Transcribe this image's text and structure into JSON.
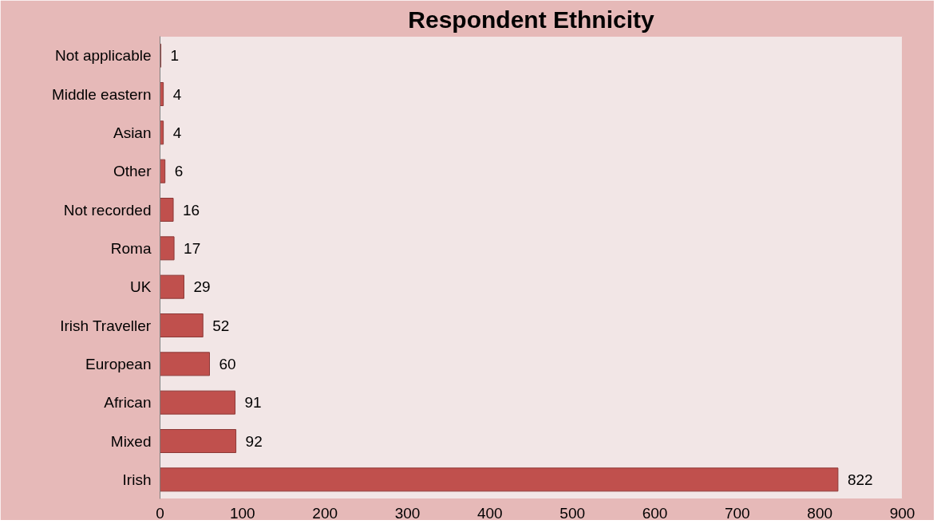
{
  "chart_data": {
    "type": "bar",
    "orientation": "horizontal",
    "title": "Respondent Ethnicity",
    "categories": [
      "Not applicable",
      "Middle eastern",
      "Asian",
      "Other",
      "Not recorded",
      "Roma",
      "UK",
      "Irish Traveller",
      "European",
      "African",
      "Mixed",
      "Irish"
    ],
    "values": [
      1,
      4,
      4,
      6,
      16,
      17,
      29,
      52,
      60,
      91,
      92,
      822
    ],
    "color": "#c0504d",
    "xlim": [
      0,
      900
    ],
    "xticks": [
      0,
      100,
      200,
      300,
      400,
      500,
      600,
      700,
      800,
      900
    ],
    "data_labels": true,
    "grid": false
  }
}
